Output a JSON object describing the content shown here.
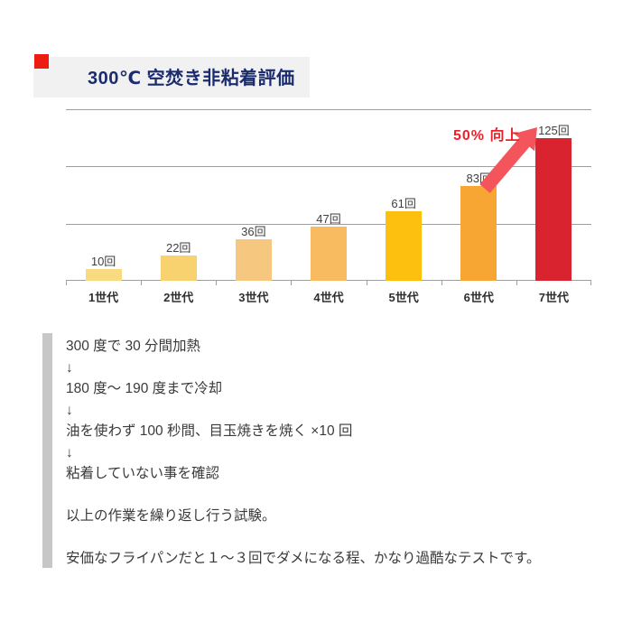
{
  "header": {
    "title": "300℃ 空焚き非粘着評価",
    "title_color": "#1B2C6E",
    "marker_color": "#EC1C13",
    "background": "#F1F1F1"
  },
  "chart_data": {
    "type": "bar",
    "title": "300℃ 空焚き非粘着評価",
    "categories": [
      "1世代",
      "2世代",
      "3世代",
      "4世代",
      "5世代",
      "6世代",
      "7世代"
    ],
    "values": [
      10,
      22,
      36,
      47,
      61,
      83,
      125
    ],
    "value_labels": [
      "10回",
      "22回",
      "36回",
      "47回",
      "61回",
      "83回",
      "125回"
    ],
    "bar_colors": [
      "#F8DB81",
      "#F8D26F",
      "#F6C77E",
      "#F9BB5F",
      "#FEC00F",
      "#F7A634",
      "#D9232E"
    ],
    "xlabel": "",
    "ylabel": "",
    "ylim": [
      0,
      150
    ],
    "gridline_values": [
      0,
      50,
      100,
      150
    ],
    "grid_on": true,
    "legend": "none",
    "annotation": {
      "label": "50% 向上",
      "label_color": "#E9212C",
      "arrow_color": "#F4555C",
      "from_category": "6世代",
      "to_category": "7世代"
    }
  },
  "procedure": {
    "lines": [
      "300 度で 30 分間加熱",
      "↓",
      "180 度～ 190 度まで冷却",
      "↓",
      "油を使わず 100 秒間、目玉焼きを焼く ×10 回",
      "↓",
      "粘着していない事を確認",
      "",
      "以上の作業を繰り返し行う試験。",
      "",
      "安価なフライパンだと１～３回でダメになる程、かなり過酷なテストです。"
    ]
  }
}
